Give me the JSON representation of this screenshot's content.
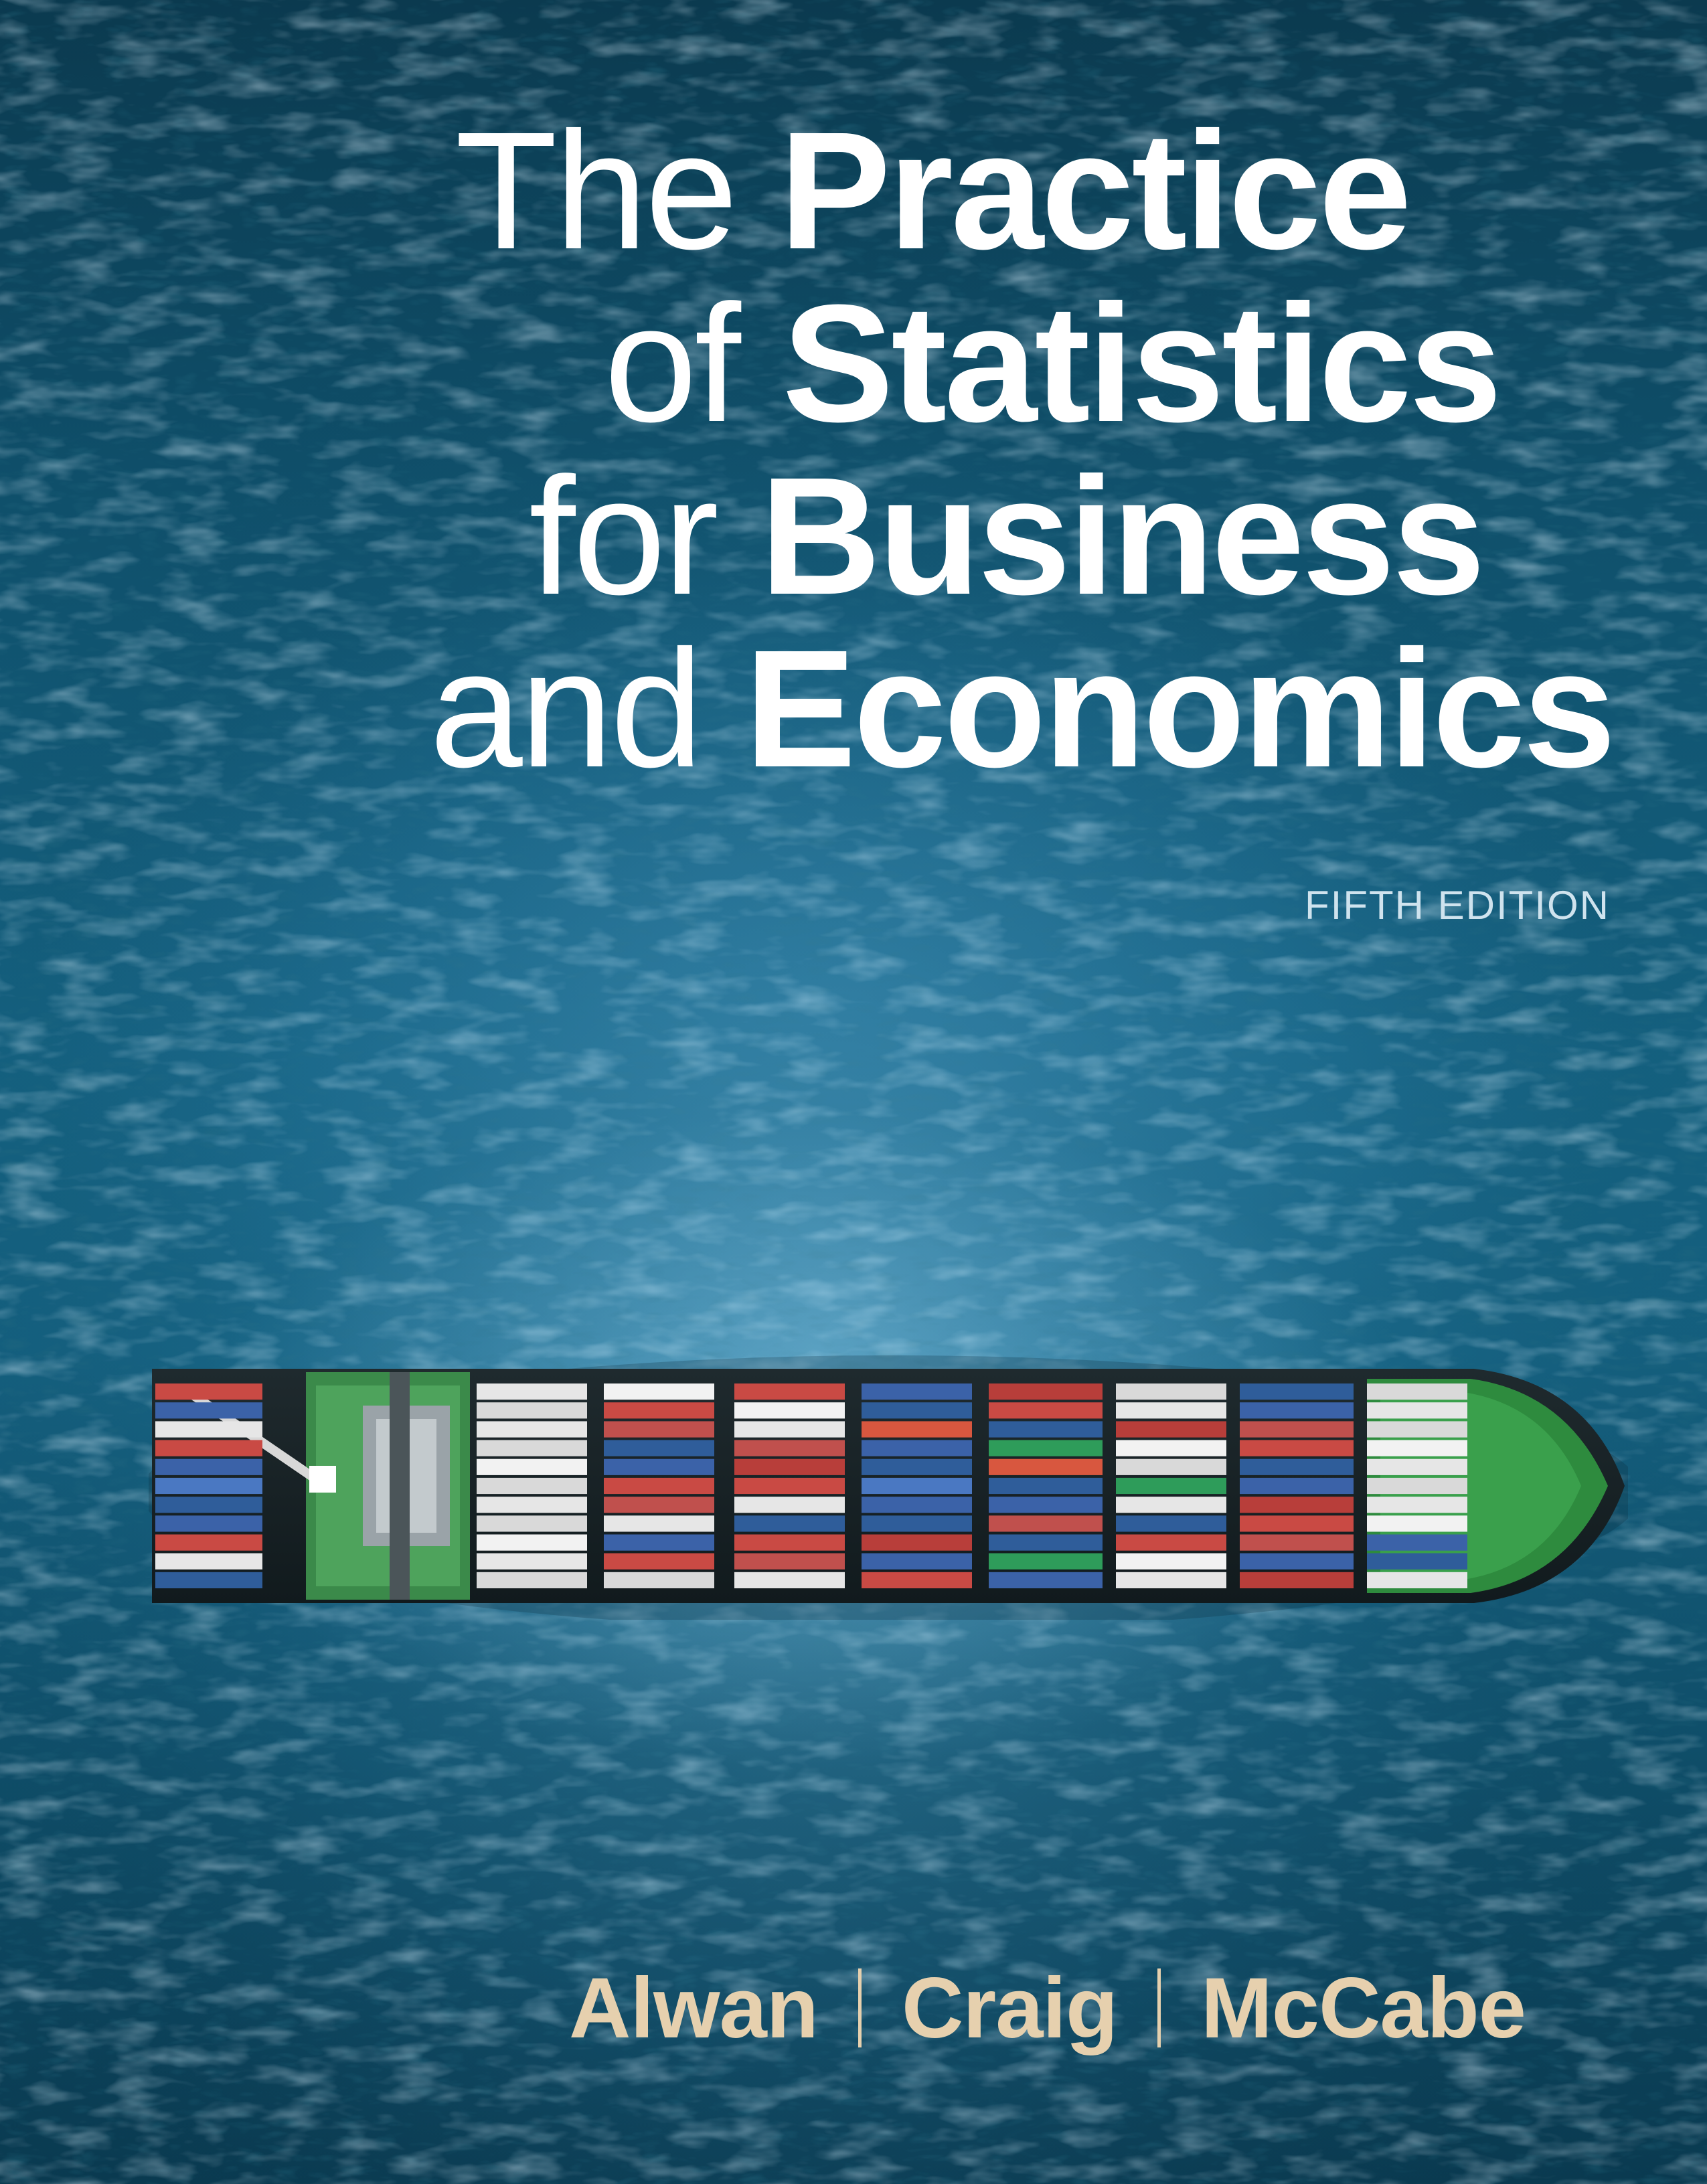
{
  "cover": {
    "title": {
      "line1_light": "The",
      "line1_bold": "Practice",
      "line2_light": "of",
      "line2_bold": "Statistics",
      "line3_light": "for",
      "line3_bold": "Business",
      "line4_light": "and",
      "line4_bold": "Economics"
    },
    "edition": "FIFTH EDITION",
    "authors": [
      "Alwan",
      "Craig",
      "McCabe"
    ],
    "colors": {
      "title_text": "#ffffff",
      "edition_text": "#cfe3ee",
      "author_text": "#e6d0ae",
      "sea_dark": "#0b3a4f",
      "sea_light": "#2f86b0",
      "hull_green": "#2e8b3e"
    },
    "image_subject": "container-ship-aerial-icon"
  }
}
